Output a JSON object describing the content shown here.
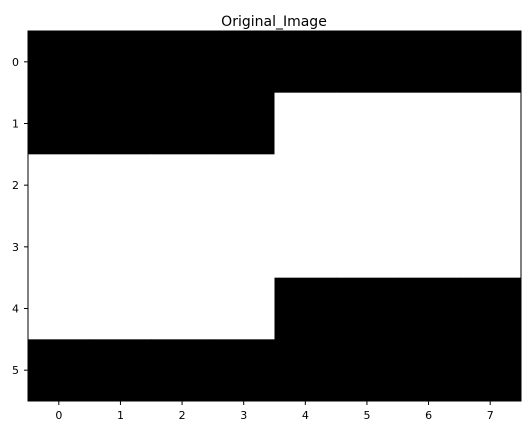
{
  "chart_data": {
    "type": "heatmap",
    "title": "Original_Image",
    "xlabel": "",
    "ylabel": "",
    "colormap": "gray",
    "color_min": "#000000",
    "color_max": "#ffffff",
    "value_range": [
      0,
      1
    ],
    "grid": false,
    "x_ticks": [
      "0",
      "1",
      "2",
      "3",
      "4",
      "5",
      "6",
      "7"
    ],
    "y_ticks": [
      "0",
      "1",
      "2",
      "3",
      "4",
      "5"
    ],
    "matrix": [
      [
        0,
        0,
        0,
        0,
        0,
        0,
        0,
        0
      ],
      [
        0,
        0,
        0,
        0,
        1,
        1,
        1,
        1
      ],
      [
        1,
        1,
        1,
        1,
        1,
        1,
        1,
        1
      ],
      [
        1,
        1,
        1,
        1,
        1,
        1,
        1,
        1
      ],
      [
        1,
        1,
        1,
        1,
        0,
        0,
        0,
        0
      ],
      [
        0,
        0,
        0,
        0,
        0,
        0,
        0,
        0
      ]
    ]
  }
}
